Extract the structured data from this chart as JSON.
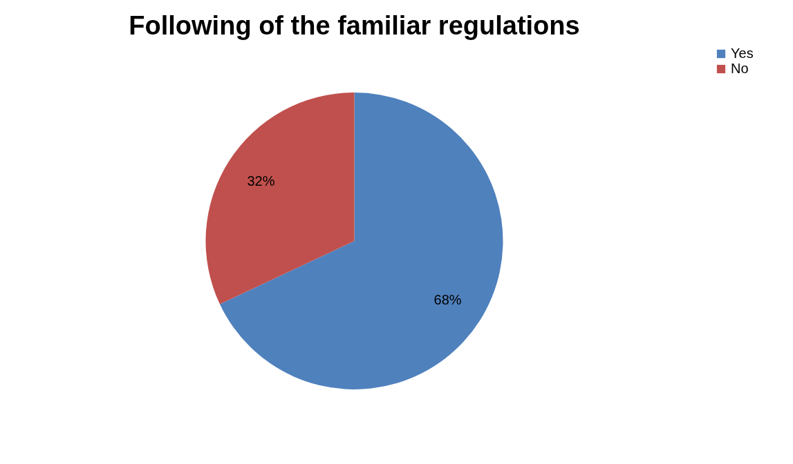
{
  "chart_data": {
    "type": "pie",
    "title": "Following of the familiar regulations",
    "categories": [
      "Yes",
      "No"
    ],
    "values": [
      68,
      32
    ],
    "value_labels": [
      "68%",
      "32%"
    ],
    "colors": [
      "#4f81bd",
      "#c0504d"
    ],
    "legend": "right"
  }
}
